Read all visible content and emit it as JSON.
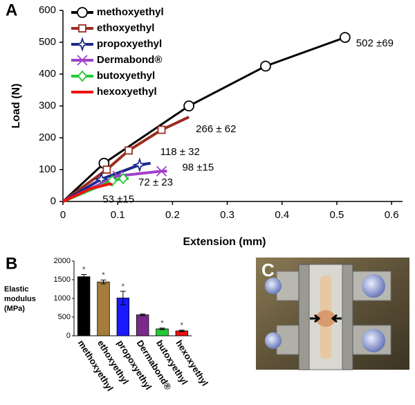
{
  "chart_data": [
    {
      "type": "line",
      "panel_label": "A",
      "xlabel": "Extension (mm)",
      "ylabel": "Load (N)",
      "xlim": [
        0,
        0.62
      ],
      "xticks": [
        0,
        0.1,
        0.2,
        0.3,
        0.4,
        0.5,
        0.6
      ],
      "ylim": [
        0,
        600
      ],
      "yticks": [
        0,
        100,
        200,
        300,
        400,
        500,
        600
      ],
      "series": [
        {
          "name": "methoxyethyl",
          "color": "#000000",
          "marker": "circle",
          "label": "502 ±69",
          "x": [
            0,
            0.075,
            0.23,
            0.37,
            0.515,
            0.52
          ],
          "values": [
            0,
            120,
            300,
            425,
            515,
            500
          ]
        },
        {
          "name": "ethoxyethyl",
          "color": "#9b2d20",
          "marker": "square",
          "label": "266 ± 62",
          "x": [
            0,
            0.08,
            0.12,
            0.18,
            0.23
          ],
          "values": [
            0,
            100,
            160,
            225,
            265
          ]
        },
        {
          "name": "propoxyethyl",
          "color": "#1c2a8c",
          "marker": "star",
          "label": "118 ± 32",
          "x": [
            0,
            0.07,
            0.14,
            0.16
          ],
          "values": [
            0,
            70,
            115,
            120
          ]
        },
        {
          "name": "Dermabond®",
          "color": "#a040c8",
          "marker": "x",
          "label": "98 ±15",
          "x": [
            0,
            0.1,
            0.18,
            0.19
          ],
          "values": [
            0,
            80,
            95,
            95
          ]
        },
        {
          "name": "butoxyethyl",
          "color": "#22cc33",
          "marker": "diamond",
          "label": "72 ± 23",
          "x": [
            0,
            0.09,
            0.11,
            0.12
          ],
          "values": [
            0,
            65,
            72,
            72
          ]
        },
        {
          "name": "hexoxyethyl",
          "color": "#ee1111",
          "marker": "none",
          "label": "53 ±15",
          "x": [
            0,
            0.05,
            0.085,
            0.09
          ],
          "values": [
            0,
            40,
            55,
            53
          ]
        }
      ]
    },
    {
      "type": "bar",
      "panel_label": "B",
      "ylabel": [
        "Elastic",
        "modulus",
        "(MPa)"
      ],
      "ylim": [
        0,
        2000
      ],
      "yticks": [
        0,
        500,
        1000,
        1500,
        2000
      ],
      "categories": [
        "methoxyethyl",
        "ethoxyethyl",
        "propoxyethyl",
        "Dermabond®",
        "butoxyethyl",
        "hexoxyethyl"
      ],
      "values": [
        1580,
        1440,
        1010,
        560,
        185,
        130
      ],
      "errors": [
        60,
        50,
        180,
        20,
        20,
        20
      ],
      "colors": [
        "#000000",
        "#a57c3c",
        "#1a1aff",
        "#7a2a8a",
        "#22cc33",
        "#ee1111"
      ],
      "significance": [
        "*",
        "*",
        "*",
        null,
        "*",
        "*"
      ]
    }
  ],
  "photo": {
    "label": "C"
  }
}
